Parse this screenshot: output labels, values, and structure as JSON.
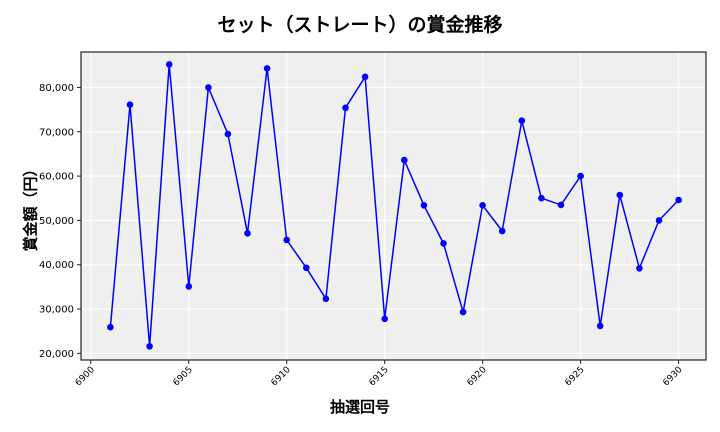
{
  "chart_data": {
    "type": "line",
    "title": "セット（ストレート）の賞金推移",
    "xlabel": "抽選回号",
    "ylabel": "賞金額（円）",
    "x": [
      6901,
      6902,
      6903,
      6904,
      6905,
      6906,
      6907,
      6908,
      6909,
      6910,
      6911,
      6912,
      6913,
      6914,
      6915,
      6916,
      6917,
      6918,
      6919,
      6920,
      6921,
      6922,
      6923,
      6924,
      6925,
      6926,
      6927,
      6928,
      6929,
      6930
    ],
    "series": [
      {
        "name": "賞金額",
        "color": "#0000ff",
        "marker": "circle",
        "values": [
          25900,
          76100,
          21600,
          85200,
          35100,
          80000,
          69500,
          47100,
          84300,
          45600,
          39300,
          32300,
          75400,
          82400,
          27800,
          63600,
          53400,
          44800,
          29300,
          53400,
          47600,
          72500,
          55000,
          53500,
          60000,
          26200,
          55700,
          39200,
          50000,
          54600
        ]
      }
    ],
    "xticks": [
      6900,
      6905,
      6910,
      6915,
      6920,
      6925,
      6930
    ],
    "xtick_labels": [
      "6900",
      "6905",
      "6910",
      "6915",
      "6920",
      "6925",
      "6930"
    ],
    "yticks": [
      20000,
      30000,
      40000,
      50000,
      60000,
      70000,
      80000
    ],
    "ytick_labels": [
      "20,000",
      "30,000",
      "40,000",
      "50,000",
      "60,000",
      "70,000",
      "80,000"
    ],
    "xlim": [
      6899.5,
      6931.4
    ],
    "ylim": [
      18500,
      88000
    ],
    "grid": true,
    "legend": null,
    "background_color": "#efefef",
    "line_color": "#0000ff"
  }
}
